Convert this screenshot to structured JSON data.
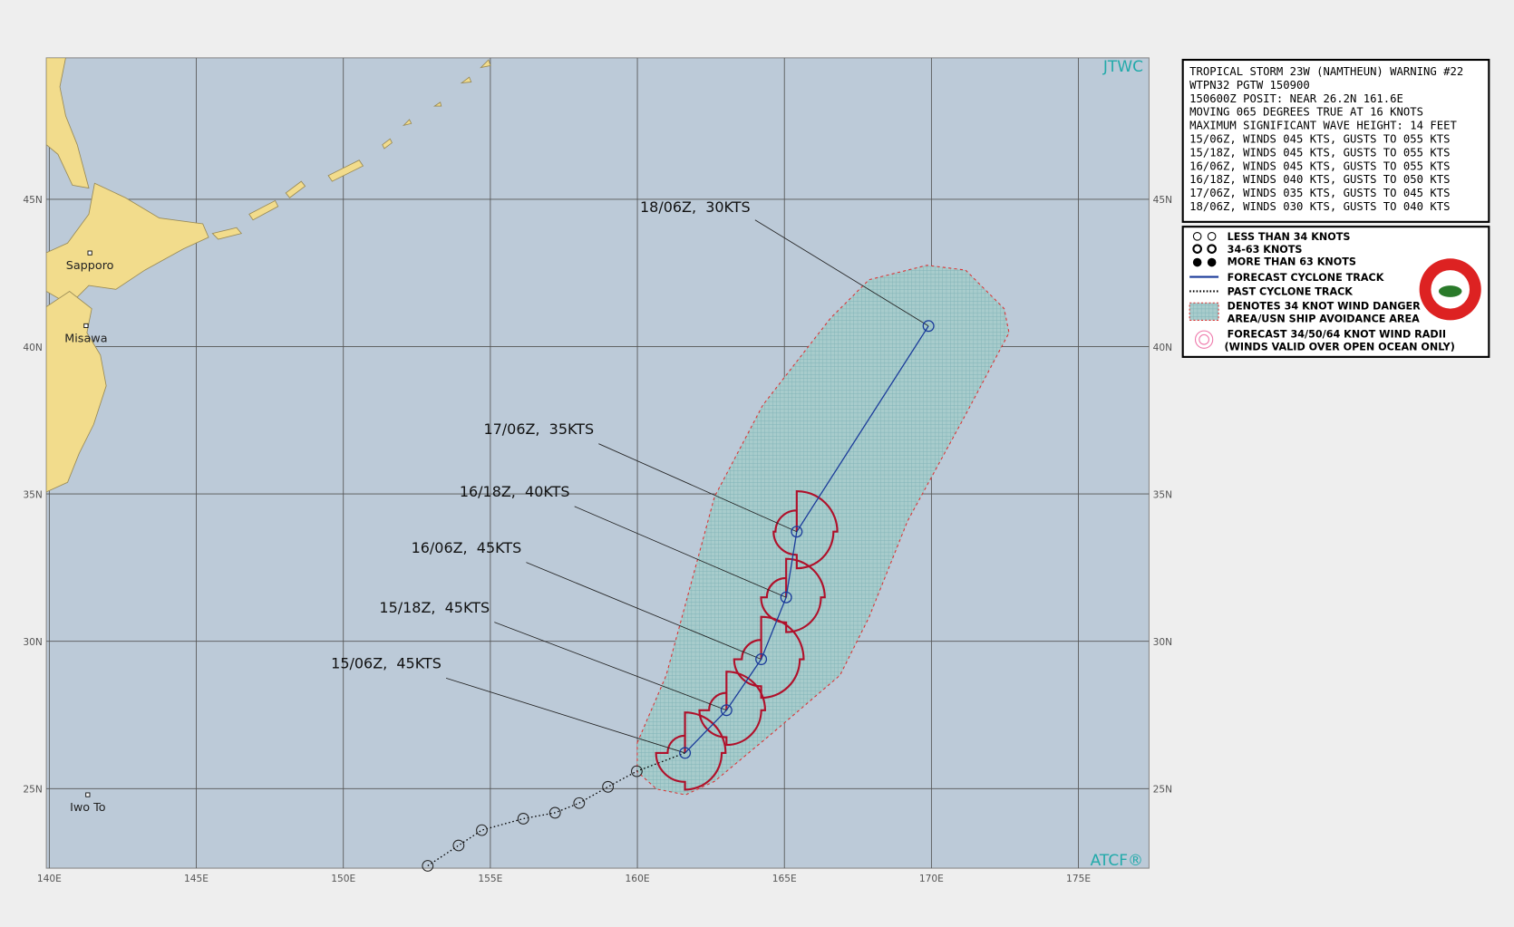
{
  "map": {
    "xlim": [
      139.9,
      177.4
    ],
    "ylim": [
      22.3,
      49.8
    ],
    "xticks": [
      {
        "value": 140,
        "label": "140E"
      },
      {
        "value": 145,
        "label": "145E"
      },
      {
        "value": 150,
        "label": "150E"
      },
      {
        "value": 155,
        "label": "155E"
      },
      {
        "value": 160,
        "label": "160E"
      },
      {
        "value": 165,
        "label": "165E"
      },
      {
        "value": 170,
        "label": "170E"
      },
      {
        "value": 175,
        "label": "175E"
      }
    ],
    "yticks": [
      {
        "value": 25,
        "label": "25N"
      },
      {
        "value": 30,
        "label": "30N"
      },
      {
        "value": 35,
        "label": "35N"
      },
      {
        "value": 40,
        "label": "40N"
      },
      {
        "value": 45,
        "label": "45N"
      }
    ],
    "agency": "JTWC",
    "software": "ATCF®",
    "places": [
      {
        "name": "Sapporo",
        "lat": 43.18,
        "lon": 141.38
      },
      {
        "name": "Misawa",
        "lat": 40.71,
        "lon": 141.25
      },
      {
        "name": "Iwo To",
        "lat": 24.79,
        "lon": 141.31
      }
    ],
    "past_track": [
      {
        "lat": 22.38,
        "lon": 152.87
      },
      {
        "lat": 23.07,
        "lon": 153.92
      },
      {
        "lat": 23.59,
        "lon": 154.71
      },
      {
        "lat": 23.98,
        "lon": 156.12
      },
      {
        "lat": 24.18,
        "lon": 157.2
      },
      {
        "lat": 24.51,
        "lon": 158.02
      },
      {
        "lat": 25.06,
        "lon": 159.0
      },
      {
        "lat": 25.59,
        "lon": 159.98
      }
    ],
    "forecast": [
      {
        "label": "15/06Z,  45KTS",
        "lat": 26.21,
        "lon": 161.62
      },
      {
        "label": "15/18Z,  45KTS",
        "lat": 27.66,
        "lon": 163.03
      },
      {
        "label": "16/06Z,  45KTS",
        "lat": 29.39,
        "lon": 164.21
      },
      {
        "label": "16/18Z,  40KTS",
        "lat": 31.49,
        "lon": 165.06
      },
      {
        "label": "17/06Z,  35KTS",
        "lat": 33.72,
        "lon": 165.42
      },
      {
        "label": "18/06Z,  30KTS",
        "lat": 40.7,
        "lon": 169.9
      }
    ]
  },
  "warning": {
    "lines": [
      "TROPICAL STORM 23W (NAMTHEUN) WARNING #22",
      "WTPN32 PGTW 150900",
      "150600Z POSIT: NEAR 26.2N 161.6E",
      "MOVING 065 DEGREES TRUE AT 16 KNOTS",
      "MAXIMUM SIGNIFICANT WAVE HEIGHT: 14 FEET",
      "15/06Z, WINDS 045 KTS, GUSTS TO 055 KTS",
      "15/18Z, WINDS 045 KTS, GUSTS TO 055 KTS",
      "16/06Z, WINDS 045 KTS, GUSTS TO 055 KTS",
      "16/18Z, WINDS 040 KTS, GUSTS TO 050 KTS",
      "17/06Z, WINDS 035 KTS, GUSTS TO 045 KTS",
      "18/06Z, WINDS 030 KTS, GUSTS TO 040 KTS"
    ]
  },
  "legend": {
    "items": [
      "LESS THAN 34 KNOTS",
      "34-63 KNOTS",
      "MORE THAN 63 KNOTS",
      "FORECAST CYCLONE TRACK",
      "PAST CYCLONE TRACK",
      "DENOTES 34 KNOT WIND DANGER",
      "AREA/USN SHIP AVOIDANCE AREA",
      "FORECAST 34/50/64 KNOT WIND RADII",
      "(WINDS VALID OVER OPEN OCEAN ONLY)"
    ]
  }
}
